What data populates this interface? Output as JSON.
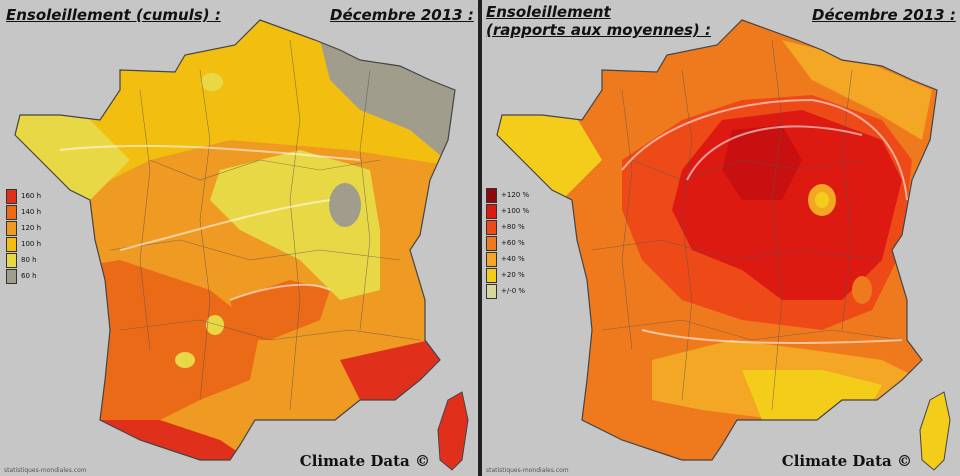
{
  "left_panel": {
    "title": "Ensoleillement (cumuls) :",
    "date": "Décembre 2013 :",
    "legend": [
      {
        "label": "160 h",
        "color": "#e0301c"
      },
      {
        "label": "140 h",
        "color": "#ea6a18"
      },
      {
        "label": "120 h",
        "color": "#ef9a22"
      },
      {
        "label": "100 h",
        "color": "#f2bf10"
      },
      {
        "label": "80 h",
        "color": "#e9d845"
      },
      {
        "label": "60 h",
        "color": "#a09d8d"
      }
    ],
    "credit": "Climate Data ©",
    "source": "statistiques-mondiales.com"
  },
  "right_panel": {
    "title_line1": "Ensoleillement",
    "title_line2": "(rapports aux moyennes) :",
    "date": "Décembre 2013 :",
    "legend": [
      {
        "label": "+120 %",
        "color": "#8e0a0a"
      },
      {
        "label": "+100 %",
        "color": "#dd1a12"
      },
      {
        "label": "+80 %",
        "color": "#ee4a18"
      },
      {
        "label": "+60 %",
        "color": "#ef7a1e"
      },
      {
        "label": "+40 %",
        "color": "#f3a724"
      },
      {
        "label": "+20 %",
        "color": "#f4cc1a"
      },
      {
        "label": "+/-0 %",
        "color": "#d9d7a0"
      }
    ],
    "credit": "Climate Data ©",
    "source": "statistiques-mondiales.com"
  }
}
